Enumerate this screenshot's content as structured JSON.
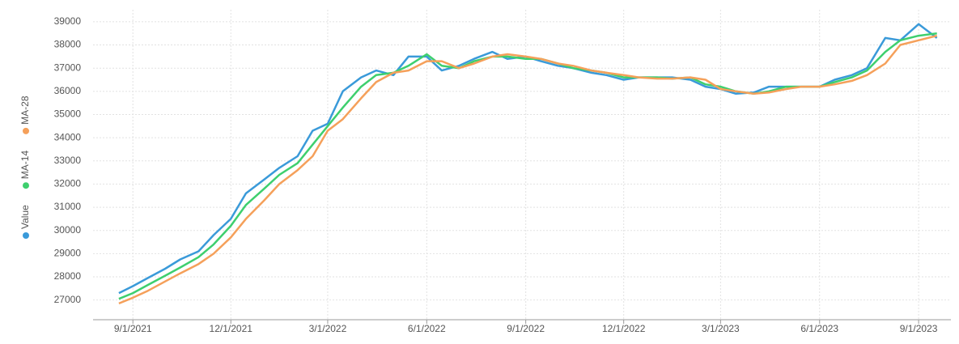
{
  "chart_data": {
    "type": "line",
    "x": [
      "8/19/2021",
      "9/1/2021",
      "9/15/2021",
      "10/1/2021",
      "10/15/2021",
      "11/1/2021",
      "11/15/2021",
      "12/1/2021",
      "12/15/2021",
      "1/1/2022",
      "1/15/2022",
      "2/1/2022",
      "2/15/2022",
      "3/1/2022",
      "3/15/2022",
      "4/1/2022",
      "4/15/2022",
      "5/1/2022",
      "5/15/2022",
      "6/1/2022",
      "6/15/2022",
      "7/1/2022",
      "7/15/2022",
      "8/1/2022",
      "8/15/2022",
      "9/1/2022",
      "9/15/2022",
      "10/1/2022",
      "10/15/2022",
      "11/1/2022",
      "11/15/2022",
      "12/1/2022",
      "12/15/2022",
      "1/1/2023",
      "1/15/2023",
      "2/1/2023",
      "2/15/2023",
      "3/1/2023",
      "3/15/2023",
      "4/1/2023",
      "4/15/2023",
      "5/1/2023",
      "5/15/2023",
      "6/1/2023",
      "6/15/2023",
      "7/1/2023",
      "7/15/2023",
      "8/1/2023",
      "8/15/2023",
      "9/1/2023",
      "9/18/2023"
    ],
    "series": [
      {
        "name": "Value",
        "color": "#3a9ad9",
        "values": [
          27300,
          27600,
          27950,
          28350,
          28750,
          29100,
          29800,
          30500,
          31600,
          32200,
          32700,
          33200,
          34300,
          34600,
          36000,
          36600,
          36900,
          36700,
          37500,
          37500,
          36900,
          37100,
          37400,
          37700,
          37400,
          37500,
          37300,
          37100,
          37000,
          36800,
          36700,
          36500,
          36600,
          36600,
          36600,
          36500,
          36200,
          36100,
          35900,
          35950,
          36200,
          36200,
          36200,
          36200,
          36500,
          36700,
          37000,
          38300,
          38200,
          38900,
          38300
        ]
      },
      {
        "name": "MA-14",
        "color": "#3ecf6e",
        "values": [
          27050,
          27300,
          27650,
          28050,
          28400,
          28850,
          29400,
          30200,
          31100,
          31800,
          32400,
          32900,
          33700,
          34500,
          35300,
          36200,
          36700,
          36800,
          37100,
          37600,
          37100,
          37000,
          37300,
          37500,
          37500,
          37400,
          37400,
          37200,
          37000,
          36900,
          36800,
          36600,
          36600,
          36600,
          36550,
          36600,
          36300,
          36200,
          36000,
          35900,
          36000,
          36200,
          36200,
          36200,
          36400,
          36600,
          36900,
          37700,
          38200,
          38400,
          38500
        ]
      },
      {
        "name": "MA-28",
        "color": "#f5a05a",
        "values": [
          26850,
          27100,
          27400,
          27800,
          28150,
          28550,
          29000,
          29700,
          30500,
          31300,
          32000,
          32600,
          33200,
          34300,
          34800,
          35700,
          36400,
          36800,
          36900,
          37300,
          37300,
          37000,
          37200,
          37500,
          37600,
          37500,
          37400,
          37200,
          37100,
          36900,
          36800,
          36700,
          36600,
          36550,
          36550,
          36600,
          36500,
          36100,
          36000,
          35900,
          35950,
          36100,
          36200,
          36200,
          36300,
          36450,
          36700,
          37200,
          38000,
          38200,
          38400
        ]
      }
    ],
    "xlim": [
      "7/26/2021",
      "10/1/2023"
    ],
    "xticks": [
      "9/1/2021",
      "12/1/2021",
      "3/1/2022",
      "6/1/2022",
      "9/1/2022",
      "12/1/2022",
      "3/1/2023",
      "6/1/2023",
      "9/1/2023"
    ],
    "ylim": [
      26150,
      39520
    ],
    "yticks": [
      27000,
      28000,
      29000,
      30000,
      31000,
      32000,
      33000,
      34000,
      35000,
      36000,
      37000,
      38000,
      39000
    ],
    "grid": true,
    "legend": "left"
  }
}
